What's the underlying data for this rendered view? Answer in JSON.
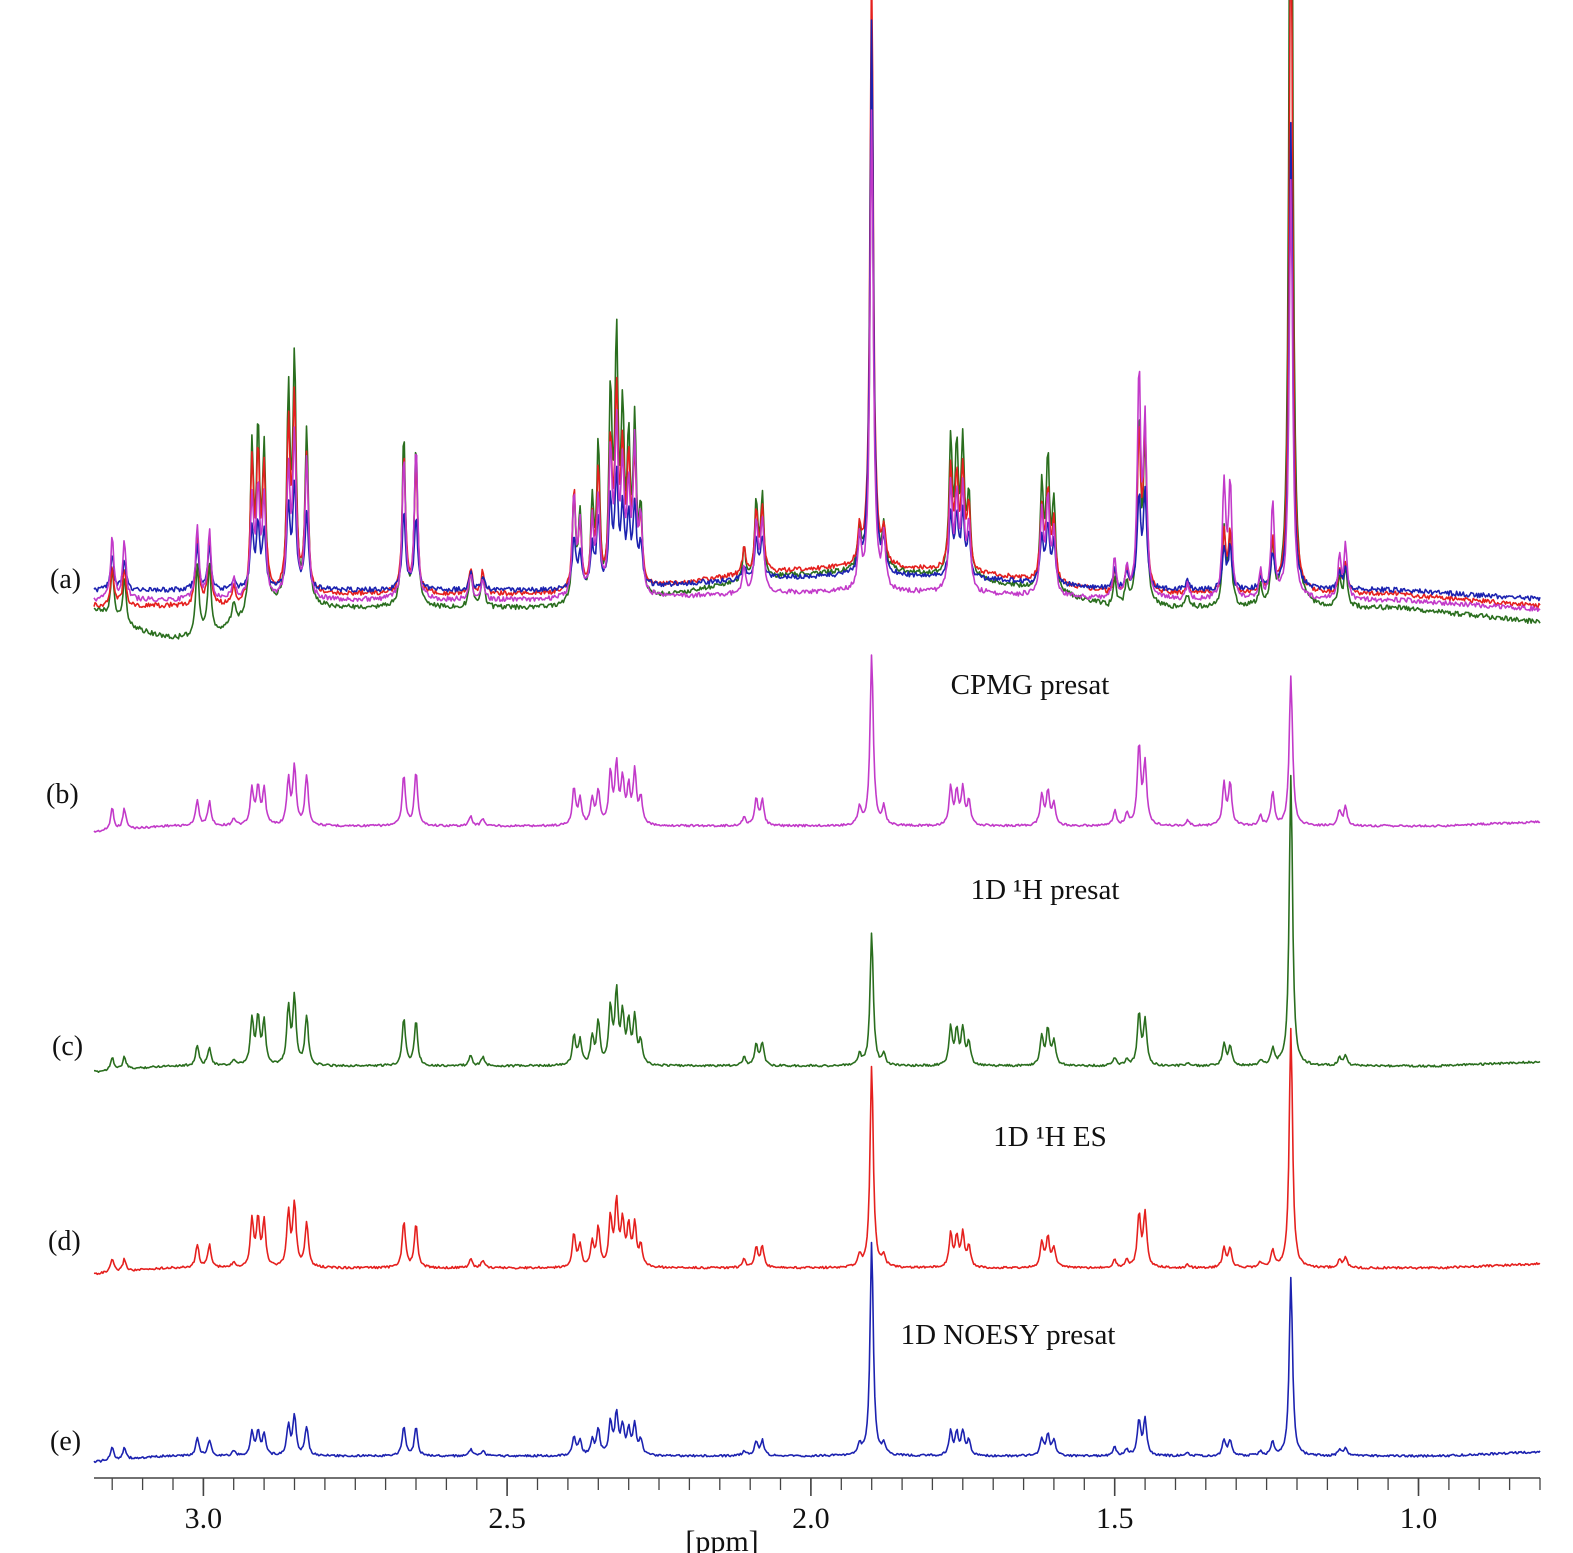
{
  "chart_data": {
    "type": "line",
    "title": "",
    "xlabel": "[ppm]",
    "ylabel": "",
    "xlim": [
      3.18,
      0.8
    ],
    "x_reversed": true,
    "grid": false,
    "x_ticks": [
      {
        "value": 3.0,
        "label": "3.0"
      },
      {
        "value": 2.5,
        "label": "2.5"
      },
      {
        "value": 2.0,
        "label": "2.0"
      },
      {
        "value": 1.5,
        "label": "1.5"
      },
      {
        "value": 1.0,
        "label": "1.0"
      }
    ],
    "x_minor_step": 0.05,
    "peaks_ppm": [
      3.15,
      3.13,
      3.01,
      2.99,
      2.95,
      2.92,
      2.91,
      2.9,
      2.86,
      2.85,
      2.83,
      2.67,
      2.65,
      2.56,
      2.54,
      2.39,
      2.38,
      2.36,
      2.35,
      2.33,
      2.32,
      2.31,
      2.3,
      2.29,
      2.28,
      2.11,
      2.09,
      2.08,
      1.92,
      1.9,
      1.88,
      1.77,
      1.76,
      1.75,
      1.74,
      1.62,
      1.61,
      1.6,
      1.5,
      1.48,
      1.46,
      1.45,
      1.38,
      1.32,
      1.31,
      1.26,
      1.24,
      1.21,
      1.13,
      1.12
    ],
    "series": [
      {
        "id": "b",
        "label": "(b)",
        "name": "CPMG presat",
        "color": "#c23ac9",
        "peak_heights": [
          0.12,
          0.11,
          0.14,
          0.13,
          0.04,
          0.19,
          0.2,
          0.19,
          0.24,
          0.31,
          0.27,
          0.27,
          0.29,
          0.05,
          0.04,
          0.2,
          0.14,
          0.14,
          0.18,
          0.27,
          0.31,
          0.23,
          0.19,
          0.28,
          0.14,
          0.05,
          0.14,
          0.14,
          0.1,
          0.93,
          0.1,
          0.2,
          0.17,
          0.19,
          0.13,
          0.16,
          0.18,
          0.12,
          0.08,
          0.06,
          0.43,
          0.33,
          0.03,
          0.22,
          0.22,
          0.05,
          0.18,
          0.81,
          0.08,
          0.1
        ]
      },
      {
        "id": "c",
        "label": "(c)",
        "name": "1D ¹H presat",
        "color": "#2a6e1e",
        "peak_heights": [
          0.12,
          0.11,
          0.18,
          0.17,
          0.05,
          0.4,
          0.42,
          0.38,
          0.51,
          0.6,
          0.44,
          0.43,
          0.4,
          0.09,
          0.08,
          0.26,
          0.22,
          0.24,
          0.38,
          0.5,
          0.62,
          0.43,
          0.36,
          0.42,
          0.2,
          0.08,
          0.19,
          0.2,
          0.1,
          1.18,
          0.1,
          0.33,
          0.3,
          0.32,
          0.2,
          0.26,
          0.32,
          0.22,
          0.07,
          0.06,
          0.46,
          0.4,
          0.03,
          0.19,
          0.18,
          0.05,
          0.14,
          2.6,
          0.07,
          0.09
        ]
      },
      {
        "id": "d",
        "label": "(d)",
        "name": "1D ¹H ES",
        "color": "#e5201e",
        "peak_heights": [
          0.12,
          0.11,
          0.21,
          0.21,
          0.05,
          0.42,
          0.43,
          0.4,
          0.49,
          0.57,
          0.41,
          0.42,
          0.39,
          0.08,
          0.07,
          0.3,
          0.19,
          0.21,
          0.35,
          0.43,
          0.57,
          0.39,
          0.35,
          0.38,
          0.18,
          0.08,
          0.18,
          0.19,
          0.1,
          1.85,
          0.1,
          0.3,
          0.27,
          0.3,
          0.19,
          0.22,
          0.27,
          0.18,
          0.07,
          0.06,
          0.48,
          0.49,
          0.03,
          0.18,
          0.18,
          0.05,
          0.15,
          2.18,
          0.07,
          0.09
        ]
      },
      {
        "id": "e",
        "label": "(e)",
        "name": "1D NOESY presat",
        "color": "#1c22b0",
        "peak_heights": [
          0.12,
          0.11,
          0.16,
          0.15,
          0.04,
          0.21,
          0.22,
          0.2,
          0.28,
          0.37,
          0.27,
          0.28,
          0.26,
          0.06,
          0.05,
          0.18,
          0.13,
          0.14,
          0.25,
          0.3,
          0.38,
          0.26,
          0.23,
          0.28,
          0.14,
          0.05,
          0.14,
          0.14,
          0.1,
          2.0,
          0.1,
          0.22,
          0.2,
          0.22,
          0.14,
          0.16,
          0.2,
          0.14,
          0.08,
          0.06,
          0.33,
          0.34,
          0.03,
          0.15,
          0.15,
          0.04,
          0.12,
          1.67,
          0.06,
          0.08
        ]
      }
    ],
    "overlay_label": "(a)",
    "overlay_series": [
      "c",
      "d",
      "e",
      "b"
    ]
  }
}
